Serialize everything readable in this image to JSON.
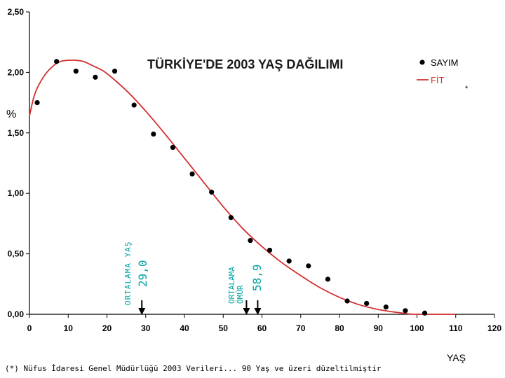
{
  "chart_data": {
    "type": "scatter",
    "title": "TÜRKİYE'DE 2003 YAŞ DAĞILIMI",
    "xlabel": "YAŞ",
    "ylabel": "%",
    "xlim": [
      0,
      120
    ],
    "ylim": [
      0,
      2.5
    ],
    "x_ticks": [
      "0",
      "10",
      "20",
      "30",
      "40",
      "50",
      "60",
      "70",
      "80",
      "90",
      "100",
      "110",
      "120"
    ],
    "y_ticks": [
      "0,00",
      "0,50",
      "1,00",
      "1,50",
      "2,00",
      "2,50"
    ],
    "legend": {
      "position": "top-right",
      "scatter_label": "SAYIM",
      "line_label": "FİT",
      "asterisk": "*"
    },
    "series": [
      {
        "name": "SAYIM",
        "kind": "points",
        "x": [
          2,
          7,
          12,
          17,
          22,
          27,
          32,
          37,
          42,
          47,
          52,
          57,
          62,
          67,
          72,
          77,
          82,
          87,
          92,
          97,
          102
        ],
        "y": [
          1.75,
          2.09,
          2.01,
          1.96,
          2.01,
          1.73,
          1.49,
          1.38,
          1.16,
          1.01,
          0.8,
          0.61,
          0.53,
          0.44,
          0.4,
          0.29,
          0.11,
          0.09,
          0.06,
          0.03,
          0.01
        ]
      },
      {
        "name": "FİT",
        "kind": "line",
        "x": [
          0,
          1,
          2,
          4,
          6,
          8,
          10,
          12,
          14,
          16,
          18,
          20,
          25,
          30,
          35,
          40,
          45,
          50,
          55,
          60,
          65,
          70,
          75,
          80,
          85,
          90,
          95,
          98,
          100,
          105,
          110
        ],
        "y": [
          1.64,
          1.78,
          1.87,
          1.98,
          2.05,
          2.09,
          2.1,
          2.1,
          2.09,
          2.06,
          2.03,
          1.99,
          1.85,
          1.68,
          1.49,
          1.29,
          1.09,
          0.89,
          0.71,
          0.56,
          0.43,
          0.32,
          0.22,
          0.14,
          0.08,
          0.04,
          0.015,
          0.003,
          0.0,
          0.0,
          0.0
        ]
      }
    ],
    "colors": {
      "points": "#000000",
      "fit_line": "#d32f2f",
      "annotation": "#00a3a3",
      "axis": "#000000"
    },
    "annotations": [
      {
        "label": "ORTALAMA YAŞ",
        "value_label": "29,0",
        "x": 29.0
      },
      {
        "label_line1": "ORTALAMA",
        "label_line2": "ÖMÜR",
        "value_label": "58,9",
        "x_arrows": [
          56.0,
          58.9
        ]
      }
    ]
  },
  "footnote": "(*) Nüfus İdaresi Genel Müdürlüğü 2003 Verileri... 90 Yaş ve üzeri düzeltilmiştir"
}
